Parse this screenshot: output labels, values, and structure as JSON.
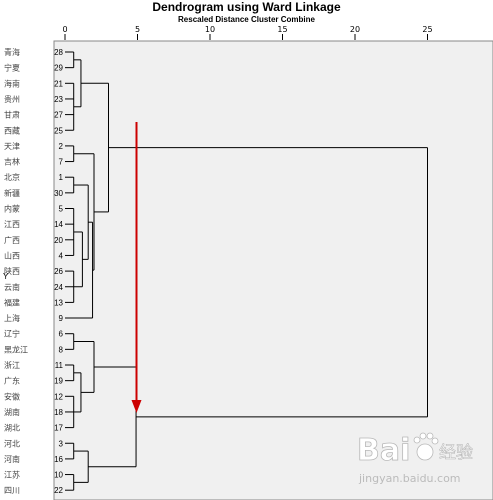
{
  "title": "Dendrogram using Ward Linkage",
  "subtitle": "Rescaled Distance Cluster Combine",
  "y_axis_label": "Y",
  "x_ticks": [
    "0",
    "5",
    "10",
    "15",
    "20",
    "25"
  ],
  "rows": [
    {
      "label": "青海",
      "id": "28"
    },
    {
      "label": "宁夏",
      "id": "29"
    },
    {
      "label": "海南",
      "id": "21"
    },
    {
      "label": "贵州",
      "id": "23"
    },
    {
      "label": "甘肃",
      "id": "27"
    },
    {
      "label": "西藏",
      "id": "25"
    },
    {
      "label": "天津",
      "id": "2"
    },
    {
      "label": "吉林",
      "id": "7"
    },
    {
      "label": "北京",
      "id": "1"
    },
    {
      "label": "新疆",
      "id": "30"
    },
    {
      "label": "内蒙",
      "id": "5"
    },
    {
      "label": "江西",
      "id": "14"
    },
    {
      "label": "广西",
      "id": "20"
    },
    {
      "label": "山西",
      "id": "4"
    },
    {
      "label": "陕西",
      "id": "26"
    },
    {
      "label": "云南",
      "id": "24"
    },
    {
      "label": "福建",
      "id": "13"
    },
    {
      "label": "上海",
      "id": "9"
    },
    {
      "label": "辽宁",
      "id": "6"
    },
    {
      "label": "黑龙江",
      "id": "8"
    },
    {
      "label": "浙江",
      "id": "11"
    },
    {
      "label": "广东",
      "id": "19"
    },
    {
      "label": "安徽",
      "id": "12"
    },
    {
      "label": "湖南",
      "id": "18"
    },
    {
      "label": "湖北",
      "id": "17"
    },
    {
      "label": "河北",
      "id": "3"
    },
    {
      "label": "河南",
      "id": "16"
    },
    {
      "label": "江苏",
      "id": "10"
    },
    {
      "label": "四川",
      "id": "22"
    }
  ],
  "merges": [
    {
      "leaves": [
        0,
        1
      ],
      "distance": 0.6
    },
    {
      "leaves": [
        2,
        3,
        4,
        5
      ],
      "distance": 0.6
    },
    {
      "leaves": [
        0,
        1,
        2,
        3,
        4,
        5
      ],
      "distance": 1.1
    },
    {
      "leaves": [
        6,
        7
      ],
      "distance": 0.6
    },
    {
      "leaves": [
        8,
        9
      ],
      "distance": 0.6
    },
    {
      "leaves": [
        10,
        11,
        12,
        13
      ],
      "distance": 0.6
    },
    {
      "leaves": [
        14,
        15,
        16
      ],
      "distance": 0.6
    },
    {
      "leaves": [
        10,
        11,
        12,
        13,
        14,
        15,
        16
      ],
      "distance": 1.2
    },
    {
      "leaves": [
        8,
        9,
        10,
        11,
        12,
        13,
        14,
        15,
        16
      ],
      "distance": 1.6
    },
    {
      "leaves": [
        8,
        9,
        10,
        11,
        12,
        13,
        14,
        15,
        16,
        17
      ],
      "distance": 1.9
    },
    {
      "leaves": [
        6,
        7,
        8,
        9,
        10,
        11,
        12,
        13,
        14,
        15,
        16,
        17
      ],
      "distance": 2.0
    },
    {
      "leaves": [
        0,
        1,
        2,
        3,
        4,
        5,
        6,
        7,
        8,
        9,
        10,
        11,
        12,
        13,
        14,
        15,
        16,
        17
      ],
      "distance": 3.0
    },
    {
      "leaves": [
        18,
        19
      ],
      "distance": 0.6
    },
    {
      "leaves": [
        20,
        21
      ],
      "distance": 0.6
    },
    {
      "leaves": [
        22,
        23,
        24
      ],
      "distance": 0.6
    },
    {
      "leaves": [
        20,
        21,
        22,
        23,
        24
      ],
      "distance": 1.1
    },
    {
      "leaves": [
        18,
        19,
        20,
        21,
        22,
        23,
        24
      ],
      "distance": 2.0
    },
    {
      "leaves": [
        25,
        26
      ],
      "distance": 0.6
    },
    {
      "leaves": [
        27,
        28
      ],
      "distance": 0.6
    },
    {
      "leaves": [
        25,
        26,
        27,
        28
      ],
      "distance": 1.6
    },
    {
      "leaves": [
        18,
        19,
        20,
        21,
        22,
        23,
        24,
        25,
        26,
        27,
        28
      ],
      "distance": 4.9
    },
    {
      "leaves": [
        0,
        1,
        2,
        3,
        4,
        5,
        6,
        7,
        8,
        9,
        10,
        11,
        12,
        13,
        14,
        15,
        16,
        17,
        18,
        19,
        20,
        21,
        22,
        23,
        24,
        25,
        26,
        27,
        28
      ],
      "distance": 25
    }
  ],
  "annotation_arrow": {
    "color": "#cc0000",
    "at_distance": 5
  },
  "colors": {
    "panel": "#f0f0f0",
    "line": "#000000",
    "text_label": "#444444"
  },
  "watermark": {
    "brand": "Bai",
    "brand_suffix": "经验",
    "url": "jingyan.baidu.com"
  }
}
